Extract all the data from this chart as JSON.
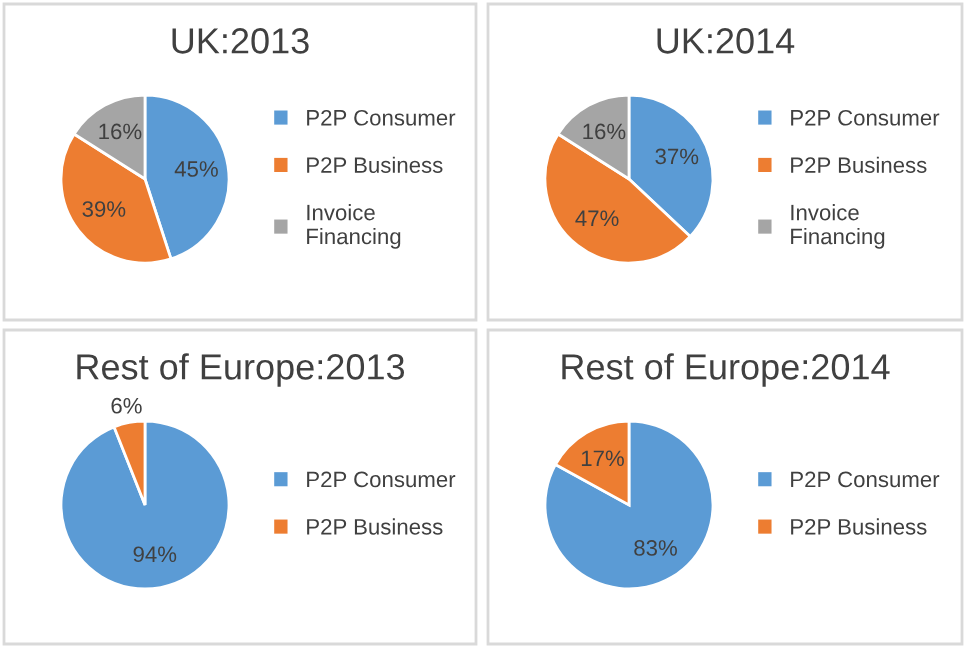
{
  "chart_data": [
    {
      "type": "pie",
      "title": "UK:2013",
      "categories": [
        "P2P Consumer",
        "P2P Business",
        "Invoice Financing"
      ],
      "values": [
        45,
        39,
        16
      ],
      "value_labels": [
        "45%",
        "39%",
        "16%"
      ],
      "colors": [
        "#5b9bd5",
        "#ed7d31",
        "#a5a5a5"
      ],
      "legend": "right"
    },
    {
      "type": "pie",
      "title": "UK:2014",
      "categories": [
        "P2P Consumer",
        "P2P Business",
        "Invoice Financing"
      ],
      "values": [
        37,
        47,
        16
      ],
      "value_labels": [
        "37%",
        "47%",
        "16%"
      ],
      "colors": [
        "#5b9bd5",
        "#ed7d31",
        "#a5a5a5"
      ],
      "legend": "right"
    },
    {
      "type": "pie",
      "title": "Rest of Europe:2013",
      "categories": [
        "P2P Consumer",
        "P2P Business"
      ],
      "values": [
        94,
        6
      ],
      "value_labels": [
        "94%",
        "6%"
      ],
      "colors": [
        "#5b9bd5",
        "#ed7d31"
      ],
      "legend": "right"
    },
    {
      "type": "pie",
      "title": "Rest of Europe:2014",
      "categories": [
        "P2P Consumer",
        "P2P Business"
      ],
      "values": [
        83,
        17
      ],
      "value_labels": [
        "83%",
        "17%"
      ],
      "colors": [
        "#5b9bd5",
        "#ed7d31"
      ],
      "legend": "right"
    }
  ]
}
